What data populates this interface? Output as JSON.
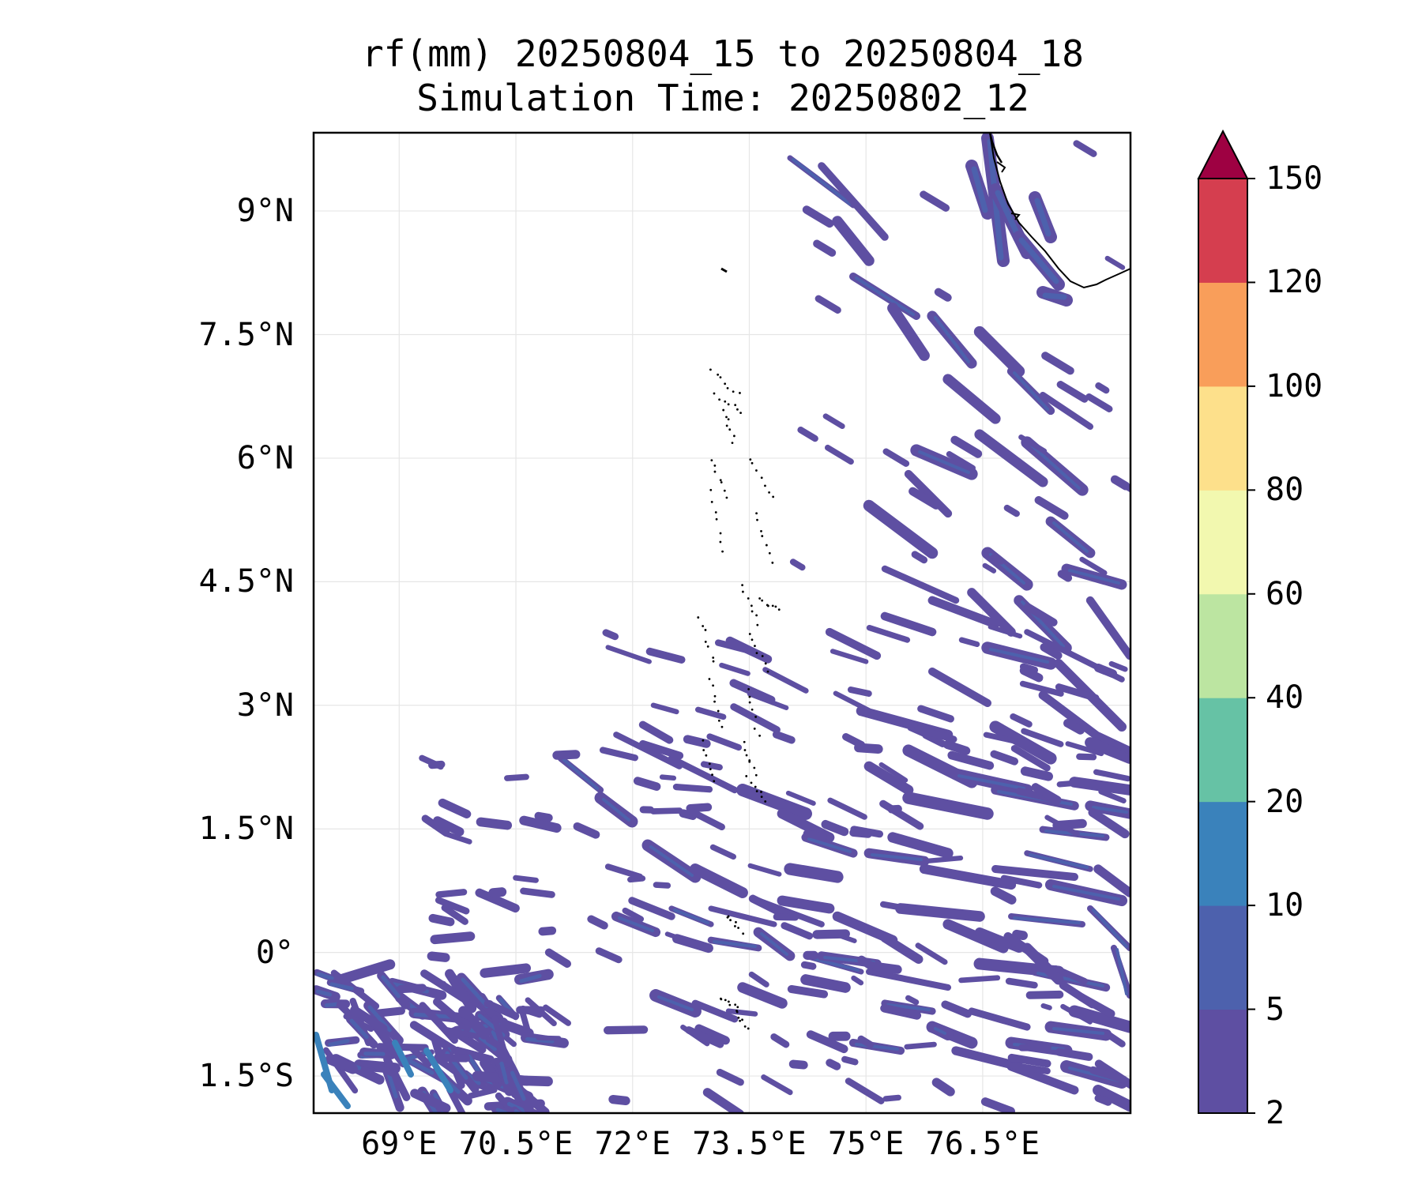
{
  "title": {
    "line1": "rf(mm) 20250804_15 to 20250804_18",
    "line2": "Simulation Time: 20250802_12"
  },
  "map": {
    "region": "Arabian Sea / Maldives",
    "lon_range": [
      67.9,
      78.4
    ],
    "lat_range": [
      -1.95,
      9.95
    ],
    "gridlines": true,
    "lat_ticks": [
      {
        "value": 9,
        "label": "9°N"
      },
      {
        "value": 7.5,
        "label": "7.5°N"
      },
      {
        "value": 6,
        "label": "6°N"
      },
      {
        "value": 4.5,
        "label": "4.5°N"
      },
      {
        "value": 3,
        "label": "3°N"
      },
      {
        "value": 1.5,
        "label": "1.5°N"
      },
      {
        "value": 0,
        "label": "0°"
      },
      {
        "value": -1.5,
        "label": "1.5°S"
      }
    ],
    "lon_ticks": [
      {
        "value": 69,
        "label": "69°E"
      },
      {
        "value": 70.5,
        "label": "70.5°E"
      },
      {
        "value": 72,
        "label": "72°E"
      },
      {
        "value": 73.5,
        "label": "73.5°E"
      },
      {
        "value": 75,
        "label": "75°E"
      },
      {
        "value": 76.5,
        "label": "76.5°E"
      }
    ],
    "features": [
      "coastline-india-southwest",
      "maldives-atolls",
      "rainfall-contours"
    ]
  },
  "colorbar": {
    "extend": "max",
    "levels": [
      "2",
      "5",
      "10",
      "20",
      "40",
      "60",
      "80",
      "100",
      "120",
      "150"
    ],
    "colors": [
      "#5e4fa2",
      "#4d61ad",
      "#3a82bb",
      "#66c2a5",
      "#bce5a1",
      "#f2f8af",
      "#fde08b",
      "#f99e5a",
      "#d53e4f"
    ],
    "extend_color": "#9e0142"
  }
}
